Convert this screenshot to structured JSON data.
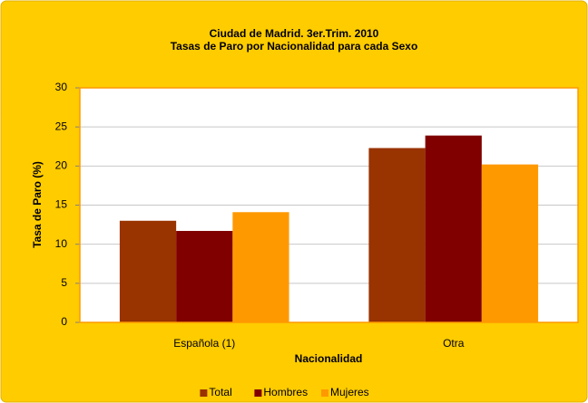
{
  "chart_data": {
    "type": "bar",
    "title": "Ciudad de Madrid. 3er.Trim. 2010",
    "subtitle": "Tasas de Paro por Nacionalidad para cada Sexo",
    "x_label": "Nacionalidad",
    "y_label": "Tasa de Paro (%)",
    "categories": [
      "Española (1)",
      "Otra"
    ],
    "series": [
      {
        "name": "Total",
        "color": "#993300",
        "values": [
          13.0,
          22.3
        ]
      },
      {
        "name": "Hombres",
        "color": "#800000",
        "values": [
          11.7,
          23.9
        ]
      },
      {
        "name": "Mujeres",
        "color": "#FF9900",
        "values": [
          14.1,
          20.2
        ]
      }
    ],
    "ylim": [
      0,
      30
    ],
    "yticks": [
      0,
      5,
      10,
      15,
      20,
      25,
      30
    ],
    "grid": true,
    "legend": "bottom"
  }
}
